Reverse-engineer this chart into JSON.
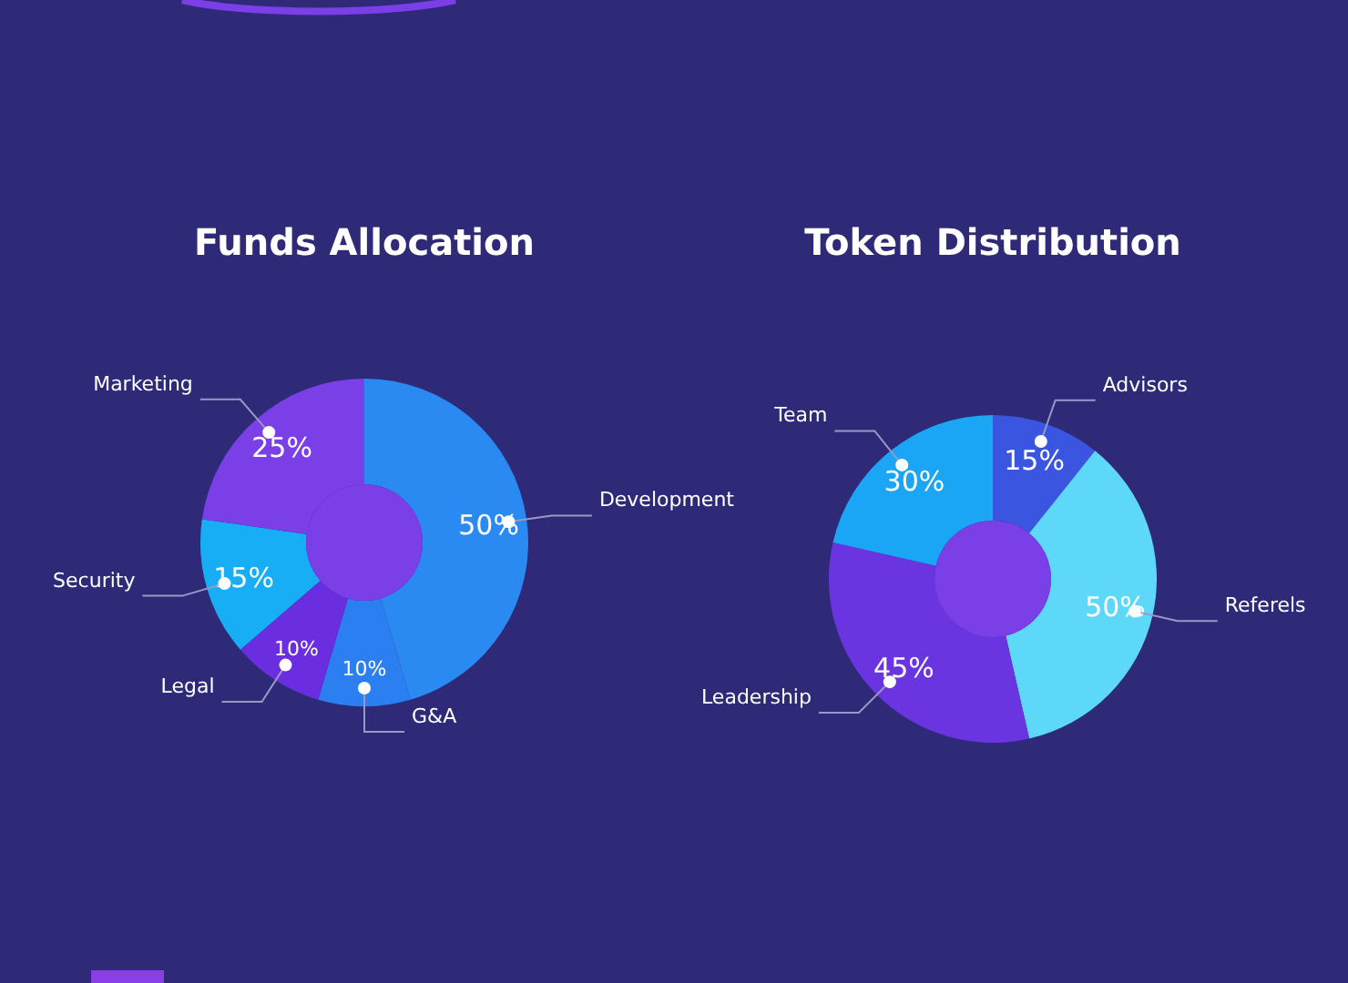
{
  "chart_data": [
    {
      "type": "donut",
      "title": "Funds Allocation",
      "categories": [
        "Development",
        "G&A",
        "Legal",
        "Security",
        "Marketing"
      ],
      "values": [
        50,
        10,
        10,
        15,
        25
      ],
      "value_labels": [
        "50%",
        "10%",
        "10%",
        "15%",
        "25%"
      ],
      "colors": [
        "#2a8af2",
        "#2b7ff0",
        "#6a2ee0",
        "#18aef5",
        "#7a3fe6"
      ]
    },
    {
      "type": "donut",
      "title": "Token Distribution",
      "categories": [
        "Advisors",
        "Referels",
        "Leadership",
        "Team"
      ],
      "values": [
        15,
        50,
        45,
        30
      ],
      "value_labels": [
        "15%",
        "50%",
        "45%",
        "30%"
      ],
      "colors": [
        "#3a55e0",
        "#5ed8f8",
        "#6a35e0",
        "#1aa6f5"
      ]
    }
  ]
}
